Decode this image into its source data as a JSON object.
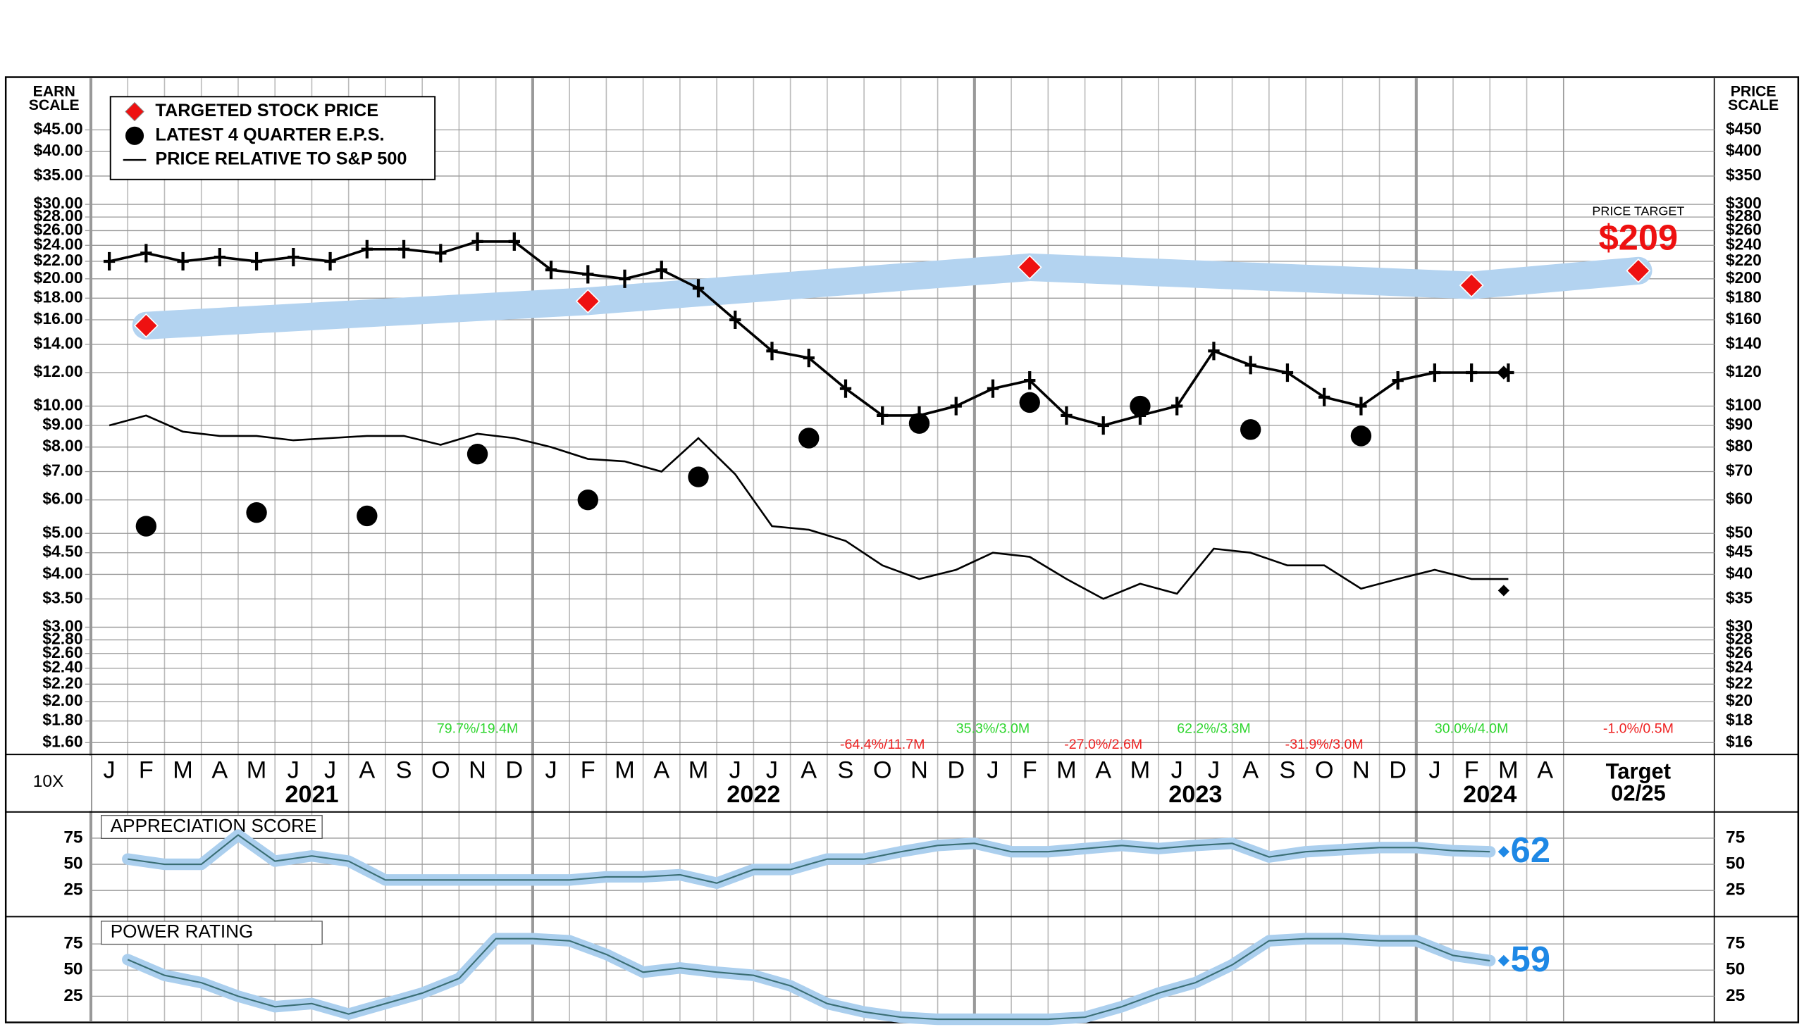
{
  "chart_data": [
    {
      "type": "stock",
      "ylabel": [
        "PRICE",
        "SCALE"
      ],
      "y2label": [
        "EARN",
        "SCALE"
      ],
      "scale_note": "10X",
      "categories": [
        "J",
        "F",
        "M",
        "A",
        "M",
        "J",
        "J",
        "A",
        "S",
        "O",
        "N",
        "D",
        "J",
        "F",
        "M",
        "A",
        "M",
        "J",
        "J",
        "A",
        "S",
        "O",
        "N",
        "D",
        "J",
        "F",
        "M",
        "A",
        "M",
        "J",
        "J",
        "A",
        "S",
        "O",
        "N",
        "D",
        "J",
        "F",
        "M",
        "A",
        "Target"
      ],
      "years": [
        "2021",
        "2022",
        "2023",
        "2024"
      ],
      "target_date": "02/25",
      "log_scale": true,
      "grid": true,
      "legend": "top-left",
      "ylim": [
        15,
        596
      ],
      "yticks": [
        {
          "value": 16,
          "label": "$16"
        },
        {
          "value": 18,
          "label": "$18"
        },
        {
          "value": 20,
          "label": "$20"
        },
        {
          "value": 22,
          "label": "$22"
        },
        {
          "value": 24,
          "label": "$24"
        },
        {
          "value": 26,
          "label": "$26"
        },
        {
          "value": 28,
          "label": "$28"
        },
        {
          "value": 30,
          "label": "$30"
        },
        {
          "value": 35,
          "label": "$35"
        },
        {
          "value": 40,
          "label": "$40"
        },
        {
          "value": 45,
          "label": "$45"
        },
        {
          "value": 50,
          "label": "$50"
        },
        {
          "value": 60,
          "label": "$60"
        },
        {
          "value": 70,
          "label": "$70"
        },
        {
          "value": 80,
          "label": "$80"
        },
        {
          "value": 90,
          "label": "$90"
        },
        {
          "value": 100,
          "label": "$100"
        },
        {
          "value": 120,
          "label": "$120"
        },
        {
          "value": 140,
          "label": "$140"
        },
        {
          "value": 160,
          "label": "$160"
        },
        {
          "value": 180,
          "label": "$180"
        },
        {
          "value": 200,
          "label": "$200"
        },
        {
          "value": 220,
          "label": "$220"
        },
        {
          "value": 240,
          "label": "$240"
        },
        {
          "value": 260,
          "label": "$260"
        },
        {
          "value": 280,
          "label": "$280"
        },
        {
          "value": 300,
          "label": "$300"
        },
        {
          "value": 350,
          "label": "$350"
        },
        {
          "value": 400,
          "label": "$400"
        },
        {
          "value": 450,
          "label": "$450"
        }
      ],
      "y2lim": [
        1.5,
        59.6
      ],
      "y2ticks": [
        {
          "value": 1.6,
          "label": "$1.60"
        },
        {
          "value": 1.8,
          "label": "$1.80"
        },
        {
          "value": 2,
          "label": "$2.00"
        },
        {
          "value": 2.2,
          "label": "$2.20"
        },
        {
          "value": 2.4,
          "label": "$2.40"
        },
        {
          "value": 2.6,
          "label": "$2.60"
        },
        {
          "value": 2.8,
          "label": "$2.80"
        },
        {
          "value": 3,
          "label": "$3.00"
        },
        {
          "value": 3.5,
          "label": "$3.50"
        },
        {
          "value": 4,
          "label": "$4.00"
        },
        {
          "value": 4.5,
          "label": "$4.50"
        },
        {
          "value": 5,
          "label": "$5.00"
        },
        {
          "value": 6,
          "label": "$6.00"
        },
        {
          "value": 7,
          "label": "$7.00"
        },
        {
          "value": 8,
          "label": "$8.00"
        },
        {
          "value": 9,
          "label": "$9.00"
        },
        {
          "value": 10,
          "label": "$10.00"
        },
        {
          "value": 12,
          "label": "$12.00"
        },
        {
          "value": 14,
          "label": "$14.00"
        },
        {
          "value": 16,
          "label": "$16.00"
        },
        {
          "value": 18,
          "label": "$18.00"
        },
        {
          "value": 20,
          "label": "$20.00"
        },
        {
          "value": 22,
          "label": "$22.00"
        },
        {
          "value": 24,
          "label": "$24.00"
        },
        {
          "value": 26,
          "label": "$26.00"
        },
        {
          "value": 28,
          "label": "$28.00"
        },
        {
          "value": 30,
          "label": "$30.00"
        },
        {
          "value": 35,
          "label": "$35.00"
        },
        {
          "value": 40,
          "label": "$40.00"
        },
        {
          "value": 45,
          "label": "$45.00"
        }
      ],
      "price": {
        "color": "#000000",
        "values": [
          220,
          230,
          220,
          225,
          220,
          225,
          220,
          235,
          235,
          230,
          245,
          245,
          210,
          205,
          200,
          210,
          190,
          160,
          135,
          130,
          110,
          95,
          95,
          100,
          110,
          115,
          95,
          90,
          95,
          100,
          135,
          125,
          120,
          105,
          100,
          115,
          120,
          120,
          120,
          null,
          null
        ]
      },
      "series": [
        {
          "name": "TARGETED STOCK PRICE",
          "color": "#ee1111",
          "marker": "diamond",
          "values": [
            null,
            155,
            null,
            null,
            null,
            null,
            null,
            null,
            null,
            null,
            null,
            null,
            null,
            177,
            null,
            null,
            null,
            null,
            null,
            null,
            null,
            null,
            null,
            null,
            null,
            213,
            null,
            null,
            null,
            null,
            null,
            null,
            null,
            null,
            null,
            null,
            null,
            193,
            null,
            null,
            209
          ],
          "value_labels": [
            null,
            null,
            null,
            null,
            null,
            null,
            null,
            null,
            null,
            null,
            null,
            null,
            null,
            null,
            null,
            null,
            null,
            null,
            null,
            null,
            null,
            null,
            null,
            null,
            null,
            null,
            null,
            null,
            null,
            null,
            null,
            null,
            null,
            null,
            null,
            null,
            null,
            null,
            null,
            null,
            "$209"
          ]
        },
        {
          "name": "LATEST 4 QUARTER E.P.S.",
          "color": "#000000",
          "marker": "circle",
          "axis": "y2",
          "values": [
            null,
            5.2,
            null,
            null,
            5.6,
            null,
            null,
            5.5,
            null,
            null,
            7.7,
            null,
            null,
            6.0,
            null,
            null,
            6.8,
            null,
            null,
            8.4,
            null,
            null,
            9.1,
            null,
            null,
            10.2,
            null,
            null,
            10.0,
            null,
            null,
            8.8,
            null,
            null,
            8.5,
            null,
            null,
            null,
            null,
            null,
            null
          ]
        },
        {
          "name": "PRICE RELATIVE TO S&P 500",
          "color": "#000000",
          "marker": "line",
          "axis": "y2",
          "values": [
            9.0,
            9.5,
            8.7,
            8.5,
            8.5,
            8.3,
            8.4,
            8.5,
            8.5,
            8.1,
            8.6,
            8.4,
            8.0,
            7.5,
            7.4,
            7.0,
            8.4,
            6.9,
            5.2,
            5.1,
            4.8,
            4.2,
            3.9,
            4.1,
            4.5,
            4.4,
            3.9,
            3.5,
            3.8,
            3.6,
            4.6,
            4.5,
            4.2,
            4.2,
            3.7,
            3.9,
            4.1,
            3.9,
            3.9,
            null,
            null
          ]
        }
      ],
      "target_title": "PRICE TARGET",
      "annotations": [
        {
          "text": "79.7%/19.4M",
          "x": 10,
          "color": "#2fd52f"
        },
        {
          "text": "-64.4%/11.7M",
          "x": 21,
          "color": "#ee2222"
        },
        {
          "text": "35.3%/3.0M",
          "x": 24,
          "color": "#2fd52f"
        },
        {
          "text": "-27.0%/2.6M",
          "x": 27,
          "color": "#ee2222"
        },
        {
          "text": "62.2%/3.3M",
          "x": 30,
          "color": "#2fd52f"
        },
        {
          "text": "-31.9%/3.0M",
          "x": 33,
          "color": "#ee2222"
        },
        {
          "text": "30.0%/4.0M",
          "x": 37,
          "color": "#2fd52f"
        },
        {
          "text": "-1.0%/0.5M",
          "x": 40,
          "color": "#ee2222"
        }
      ]
    },
    {
      "type": "line",
      "title": "APPRECIATION SCORE",
      "ylim": [
        0,
        100
      ],
      "yticks": [
        25,
        50,
        75
      ],
      "color": "#1e88e5",
      "values": [
        55,
        50,
        50,
        78,
        53,
        58,
        53,
        35,
        35,
        35,
        35,
        35,
        35,
        38,
        38,
        40,
        32,
        45,
        45,
        55,
        55,
        62,
        68,
        70,
        62,
        62,
        65,
        68,
        65,
        68,
        70,
        57,
        62,
        64,
        66,
        66,
        63,
        62,
        null,
        null,
        null
      ]
    },
    {
      "type": "line",
      "title": "POWER RATING",
      "ylim": [
        0,
        100
      ],
      "yticks": [
        25,
        50,
        75
      ],
      "color": "#1e88e5",
      "values": [
        60,
        45,
        38,
        25,
        15,
        18,
        8,
        18,
        28,
        42,
        80,
        80,
        78,
        65,
        48,
        52,
        48,
        45,
        35,
        18,
        10,
        5,
        3,
        3,
        3,
        3,
        5,
        15,
        28,
        38,
        55,
        78,
        80,
        80,
        78,
        78,
        64,
        59,
        null,
        null,
        null
      ]
    }
  ]
}
